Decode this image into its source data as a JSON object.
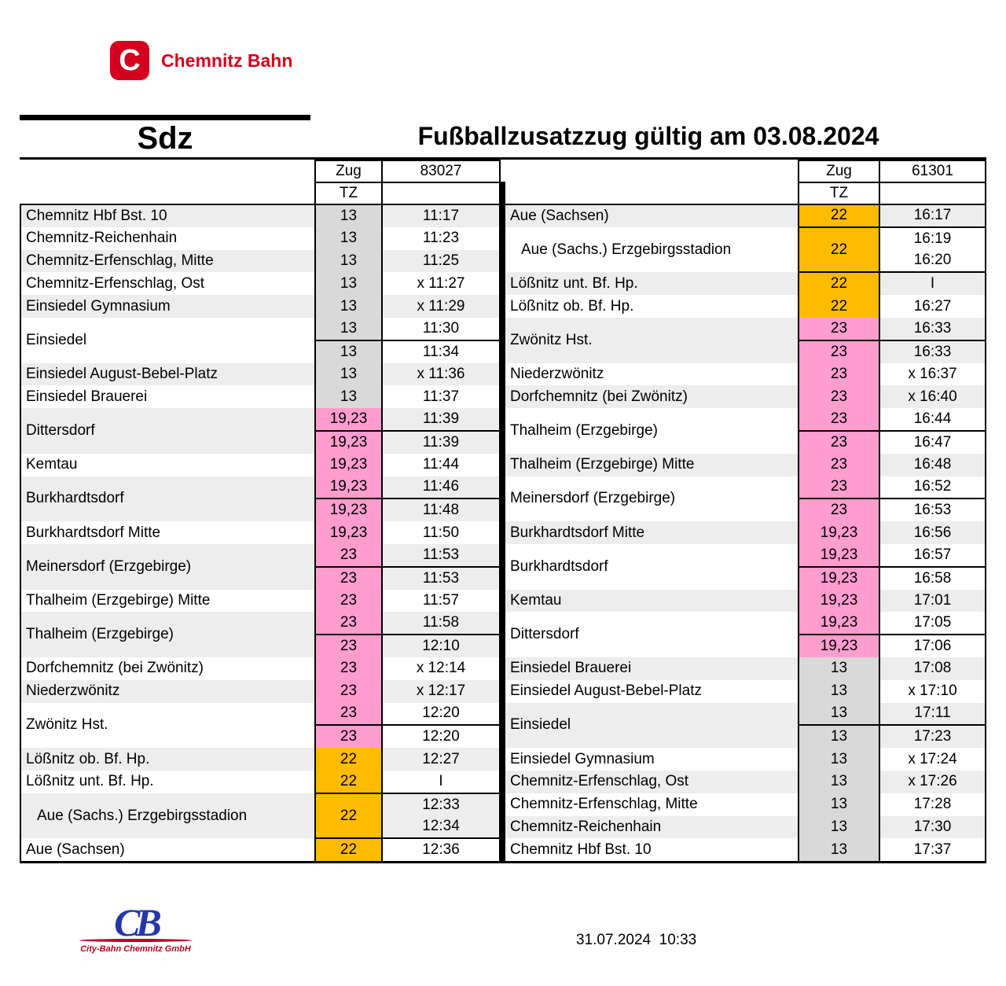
{
  "brand": {
    "logo_letter": "C",
    "name": "Chemnitz Bahn",
    "color": "#d4001e"
  },
  "titles": {
    "left": "Sdz",
    "right": "Fußballzusatzzug gültig am 03.08.2024"
  },
  "header_labels": {
    "zug": "Zug",
    "tz": "TZ"
  },
  "colors": {
    "tz_gray": "#d9d9d9",
    "tz_pink": "#ff9dcf",
    "tz_orange": "#ffbb00",
    "row_shade": "#ededed",
    "brand_red": "#d4001e",
    "logo_blue": "#2638a8",
    "border_black": "#000000"
  },
  "tables": [
    {
      "id": "left",
      "train_number": "83027",
      "stations": [
        {
          "name": "Chemnitz Hbf Bst. 10",
          "bold": true,
          "tz": "13",
          "tz_color": "gray",
          "times": [
            "11:17"
          ]
        },
        {
          "name": "Chemnitz-Reichenhain",
          "tz": "13",
          "tz_color": "gray",
          "times": [
            "11:23"
          ]
        },
        {
          "name": "Chemnitz-Erfenschlag, Mitte",
          "tz": "13",
          "tz_color": "gray",
          "times": [
            "11:25"
          ]
        },
        {
          "name": "Chemnitz-Erfenschlag, Ost",
          "tz": "13",
          "tz_color": "gray",
          "times": [
            "x 11:27"
          ]
        },
        {
          "name": "Einsiedel Gymnasium",
          "tz": "13",
          "tz_color": "gray",
          "times": [
            "x 11:29"
          ]
        },
        {
          "name": "Einsiedel",
          "bold": true,
          "tz": "13",
          "tz_color": "gray",
          "times": [
            "11:30",
            "11:34"
          ],
          "sep_inner": true
        },
        {
          "name": "Einsiedel August-Bebel-Platz",
          "tz": "13",
          "tz_color": "gray",
          "times": [
            "x 11:36"
          ]
        },
        {
          "name": "Einsiedel Brauerei",
          "tz": "13",
          "tz_color": "gray",
          "times": [
            "11:37"
          ]
        },
        {
          "name": "Dittersdorf",
          "bold": true,
          "tz": "19,23",
          "tz_color": "pink",
          "times": [
            "11:39",
            "11:39"
          ],
          "sep_inner": true
        },
        {
          "name": "Kemtau",
          "tz": "19,23",
          "tz_color": "pink",
          "times": [
            "11:44"
          ]
        },
        {
          "name": "Burkhardtsdorf",
          "bold": true,
          "tz": "19,23",
          "tz_color": "pink",
          "times": [
            "11:46",
            "11:48"
          ],
          "sep_inner": true
        },
        {
          "name": "Burkhardtsdorf Mitte",
          "tz": "19,23",
          "tz_color": "pink",
          "times": [
            "11:50"
          ]
        },
        {
          "name": "Meinersdorf (Erzgebirge)",
          "bold": true,
          "tz": "23",
          "tz_color": "pink",
          "times": [
            "11:53",
            "11:53"
          ],
          "sep_inner": true
        },
        {
          "name": "Thalheim (Erzgebirge) Mitte",
          "tz": "23",
          "tz_color": "pink",
          "times": [
            "11:57"
          ]
        },
        {
          "name": "Thalheim (Erzgebirge)",
          "bold": true,
          "tz": "23",
          "tz_color": "pink",
          "times": [
            "11:58",
            "12:10"
          ],
          "sep_inner": true
        },
        {
          "name": "Dorfchemnitz (bei Zwönitz)",
          "tz": "23",
          "tz_color": "pink",
          "times": [
            "x 12:14"
          ]
        },
        {
          "name": "Niederzwönitz",
          "tz": "23",
          "tz_color": "pink",
          "times": [
            "x 12:17"
          ]
        },
        {
          "name": "Zwönitz Hst.",
          "bold": true,
          "tz": "23",
          "tz_color": "pink",
          "times": [
            "12:20",
            "12:20"
          ],
          "sep_inner": true
        },
        {
          "name": "Lößnitz ob. Bf. Hp.",
          "tz": "22",
          "tz_color": "orange",
          "times": [
            "12:27"
          ]
        },
        {
          "name": "Lößnitz unt. Bf. Hp.",
          "tz": "22",
          "tz_color": "orange",
          "times": [
            "I"
          ]
        },
        {
          "name": "Aue (Sachs.) Erzgebirgsstadion",
          "indent": true,
          "merged_tz": true,
          "sep_before": true,
          "tz": "22",
          "tz_color": "orange",
          "times": [
            "12:33",
            "12:34"
          ]
        },
        {
          "name": "Aue (Sachsen)",
          "bold": true,
          "sep_before": true,
          "tz": "22",
          "tz_color": "orange",
          "times": [
            "12:36"
          ]
        }
      ]
    },
    {
      "id": "right",
      "train_number": "61301",
      "stations": [
        {
          "name": "Aue (Sachsen)",
          "bold": true,
          "tz": "22",
          "tz_color": "orange",
          "times": [
            "16:17"
          ]
        },
        {
          "name": "Aue (Sachs.) Erzgebirgsstadion",
          "indent": true,
          "merged_tz": true,
          "sep_before": true,
          "tz": "22",
          "tz_color": "orange",
          "times": [
            "16:19",
            "16:20"
          ]
        },
        {
          "name": "Lößnitz unt. Bf. Hp.",
          "sep_before": true,
          "tz": "22",
          "tz_color": "orange",
          "times": [
            "I"
          ]
        },
        {
          "name": "Lößnitz ob. Bf. Hp.",
          "tz": "22",
          "tz_color": "orange",
          "times": [
            "16:27"
          ]
        },
        {
          "name": "Zwönitz Hst.",
          "bold": true,
          "tz": "23",
          "tz_color": "pink",
          "times": [
            "16:33",
            "16:33"
          ],
          "sep_inner": true
        },
        {
          "name": "Niederzwönitz",
          "tz": "23",
          "tz_color": "pink",
          "times": [
            "x 16:37"
          ]
        },
        {
          "name": "Dorfchemnitz (bei Zwönitz)",
          "tz": "23",
          "tz_color": "pink",
          "times": [
            "x 16:40"
          ]
        },
        {
          "name": "Thalheim (Erzgebirge)",
          "bold": true,
          "tz": "23",
          "tz_color": "pink",
          "times": [
            "16:44",
            "16:47"
          ],
          "sep_inner": true
        },
        {
          "name": "Thalheim (Erzgebirge) Mitte",
          "tz": "23",
          "tz_color": "pink",
          "times": [
            "16:48"
          ]
        },
        {
          "name": "Meinersdorf (Erzgebirge)",
          "bold": true,
          "tz": "23",
          "tz_color": "pink",
          "times": [
            "16:52",
            "16:53"
          ],
          "sep_inner": true
        },
        {
          "name": "Burkhardtsdorf Mitte",
          "tz": "19,23",
          "tz_color": "pink",
          "times": [
            "16:56"
          ]
        },
        {
          "name": "Burkhardtsdorf",
          "bold": true,
          "tz": "19,23",
          "tz_color": "pink",
          "times": [
            "16:57",
            "16:58"
          ],
          "sep_inner": true
        },
        {
          "name": "Kemtau",
          "tz": "19,23",
          "tz_color": "pink",
          "times": [
            "17:01"
          ]
        },
        {
          "name": "Dittersdorf",
          "bold": true,
          "tz": "19,23",
          "tz_color": "pink",
          "times": [
            "17:05",
            "17:06"
          ],
          "sep_inner": true
        },
        {
          "name": "Einsiedel Brauerei",
          "tz": "13",
          "tz_color": "gray",
          "times": [
            "17:08"
          ]
        },
        {
          "name": "Einsiedel August-Bebel-Platz",
          "tz": "13",
          "tz_color": "gray",
          "times": [
            "x 17:10"
          ]
        },
        {
          "name": "Einsiedel",
          "bold": true,
          "tz": "13",
          "tz_color": "gray",
          "times": [
            "17:11",
            "17:23"
          ],
          "sep_inner": true
        },
        {
          "name": "Einsiedel Gymnasium",
          "tz": "13",
          "tz_color": "gray",
          "times": [
            "x 17:24"
          ]
        },
        {
          "name": "Chemnitz-Erfenschlag, Ost",
          "tz": "13",
          "tz_color": "gray",
          "times": [
            "x 17:26"
          ]
        },
        {
          "name": "Chemnitz-Erfenschlag, Mitte",
          "tz": "13",
          "tz_color": "gray",
          "times": [
            "17:28"
          ]
        },
        {
          "name": "Chemnitz-Reichenhain",
          "tz": "13",
          "tz_color": "gray",
          "times": [
            "17:30"
          ]
        },
        {
          "name": "Chemnitz Hbf Bst. 10",
          "bold": true,
          "tz": "13",
          "tz_color": "gray",
          "times": [
            "17:37"
          ]
        }
      ]
    }
  ],
  "footer": {
    "logo_text": "CB",
    "org": "City-Bahn Chemnitz GmbH",
    "timestamp": "31.07.2024  10:33"
  }
}
